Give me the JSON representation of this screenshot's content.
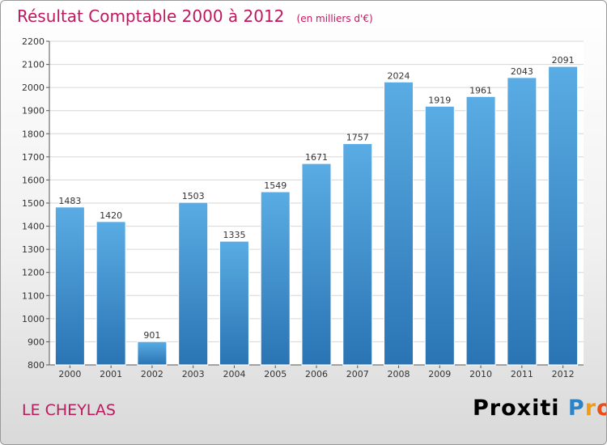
{
  "title": "Résultat Comptable 2000 à 2012",
  "unit_note": "(en milliers d'€)",
  "location": "LE CHEYLAS",
  "brand": {
    "name": "Proxiti",
    "letters": [
      "P",
      "r",
      "o",
      "x",
      "i",
      "t",
      "i"
    ],
    "colors": [
      "#2a84c7",
      "#f39c12",
      "#e8501a",
      "#2a84c7",
      "#e2165f",
      "#7ab929",
      "#2a84c7"
    ]
  },
  "colors": {
    "bar_top": "#5aace4",
    "bar_bottom": "#2a74b4",
    "title": "#c0185e",
    "grid": "#d6d6d6"
  },
  "chart_data": {
    "type": "bar",
    "title": "Résultat Comptable 2000 à 2012",
    "xlabel": "",
    "ylabel": "",
    "categories": [
      "2000",
      "2001",
      "2002",
      "2003",
      "2004",
      "2005",
      "2006",
      "2007",
      "2008",
      "2009",
      "2010",
      "2011",
      "2012"
    ],
    "values": [
      1483,
      1420,
      901,
      1503,
      1335,
      1549,
      1671,
      1757,
      2024,
      1919,
      1961,
      2043,
      2091
    ],
    "ylim": [
      800,
      2200
    ],
    "yticks": [
      800,
      900,
      1000,
      1100,
      1200,
      1300,
      1400,
      1500,
      1600,
      1700,
      1800,
      1900,
      2000,
      2100,
      2200
    ],
    "grid": true
  }
}
